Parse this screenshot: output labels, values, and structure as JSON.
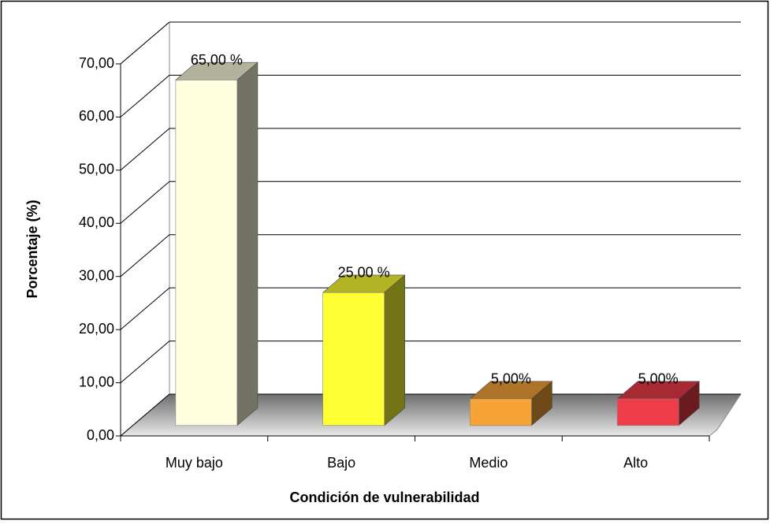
{
  "chart_data": {
    "type": "bar3d",
    "x_label": "Condición de vulnerabilidad",
    "y_label": "Porcentaje (%)",
    "categories": [
      "Muy bajo",
      "Bajo",
      "Medio",
      "Alto"
    ],
    "values": [
      65,
      25,
      5,
      5
    ],
    "value_labels": [
      "65,00 %",
      "25,00 %",
      "5,00%",
      "5,00%"
    ],
    "colors": [
      "#ffffe0",
      "#ffff33",
      "#f7a437",
      "#ee3c48"
    ],
    "ylim": [
      0,
      70
    ],
    "yticks": [
      {
        "value": 0,
        "label": "0,00"
      },
      {
        "value": 10,
        "label": "10,00"
      },
      {
        "value": 20,
        "label": "20,00"
      },
      {
        "value": 30,
        "label": "30,00"
      },
      {
        "value": 40,
        "label": "40,00"
      },
      {
        "value": 50,
        "label": "50,00"
      },
      {
        "value": 60,
        "label": "60,00"
      },
      {
        "value": 70,
        "label": "70,00"
      }
    ],
    "grid": true
  }
}
